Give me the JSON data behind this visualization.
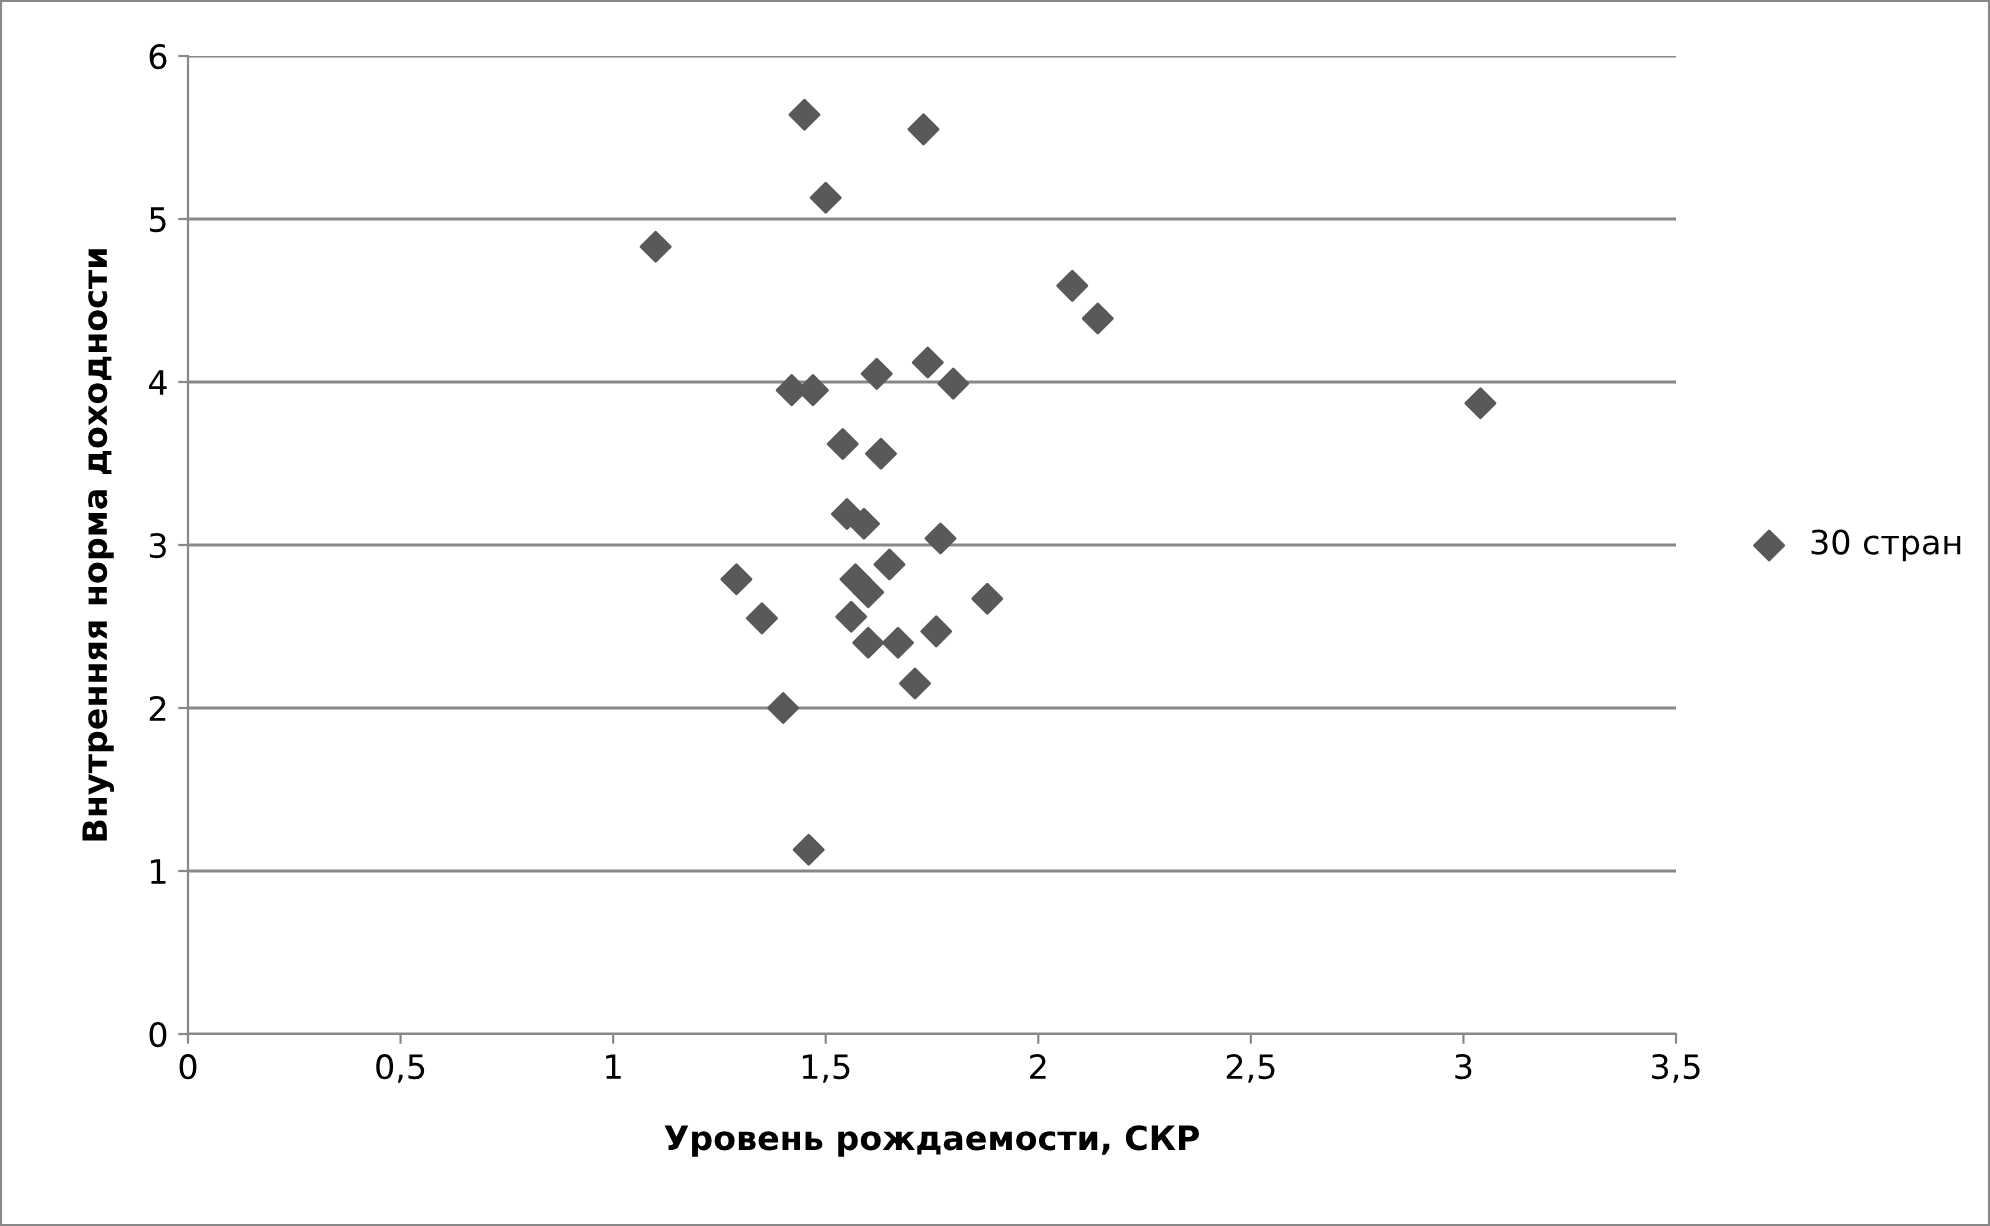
{
  "chart_data": {
    "type": "scatter",
    "xlabel": "Уровень рождаемости, СКР",
    "ylabel": "Внутренняя норма доходности",
    "xlim": [
      0,
      3.5
    ],
    "xticks": [
      0,
      {
        "value": 0.5,
        "label": "0,5"
      },
      1,
      {
        "value": 1.5,
        "label": "1,5"
      },
      2,
      {
        "value": 2.5,
        "label": "2,5"
      },
      3,
      {
        "value": 3.5,
        "label": "3,5"
      }
    ],
    "ylim": [
      0,
      6
    ],
    "yticks": [
      0,
      1,
      2,
      3,
      4,
      5,
      6
    ],
    "grid": "y",
    "legend": "right",
    "marker": "diamond",
    "series": [
      {
        "name": "30 стран",
        "color": "#595959",
        "x": [
          1.45,
          1.73,
          1.5,
          1.1,
          2.08,
          2.14,
          1.74,
          1.62,
          1.8,
          1.42,
          1.47,
          3.04,
          1.54,
          1.63,
          1.55,
          1.59,
          1.77,
          1.65,
          1.29,
          1.57,
          1.6,
          1.88,
          1.35,
          1.56,
          1.76,
          1.6,
          1.67,
          1.71,
          1.4,
          1.46
        ],
        "values": [
          5.64,
          5.55,
          5.13,
          4.83,
          4.59,
          4.39,
          4.12,
          4.05,
          3.99,
          3.95,
          3.95,
          3.87,
          3.62,
          3.56,
          3.19,
          3.13,
          3.04,
          2.88,
          2.79,
          2.79,
          2.71,
          2.67,
          2.55,
          2.56,
          2.47,
          2.4,
          2.4,
          2.15,
          2.0,
          1.13
        ]
      }
    ]
  }
}
